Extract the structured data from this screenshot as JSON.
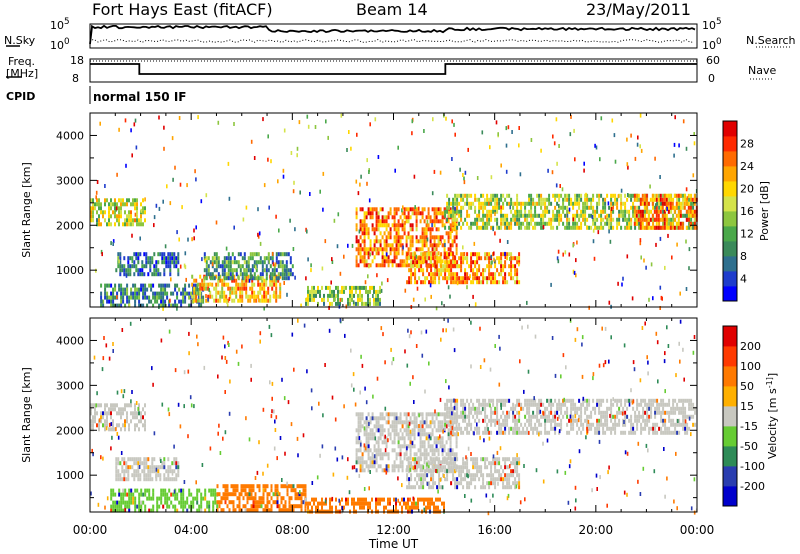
{
  "header": {
    "radar": "Fort Hays East (fitACF)",
    "beam": "Beam 14",
    "date": "23/May/2011"
  },
  "top_labels": {
    "nsky": "N.Sky",
    "nsearch": "N.Search",
    "freq_line1": "Freq.",
    "freq_line2": "[MHz]",
    "nave": "Nave",
    "cpid": "CPID",
    "cpid_value": "normal 150 IF",
    "noise_ticks": [
      "10^5",
      "10^0"
    ],
    "freq_ticks": [
      "18",
      "8"
    ],
    "nave_ticks": [
      "60",
      "0"
    ]
  },
  "x_axis": {
    "label": "Time UT",
    "ticks": [
      "00:00",
      "04:00",
      "08:00",
      "12:00",
      "16:00",
      "20:00",
      "00:00"
    ]
  },
  "chart_data": [
    {
      "type": "heatmap",
      "quantity": "Power",
      "ylabel": "Slant Range [km]",
      "ylim": [
        180,
        4500
      ],
      "yticks": [
        1000,
        2000,
        3000,
        4000
      ],
      "xlim_hours": [
        0,
        24
      ],
      "colorbar_label": "Power [dB]",
      "colorbar_ticks": [
        "28",
        "24",
        "20",
        "16",
        "12",
        "8",
        "4"
      ],
      "colorbar_colors": [
        "#0000ff",
        "#1e3ccc",
        "#2e6f8e",
        "#3a8a5a",
        "#4aa84a",
        "#8dc63f",
        "#d4e34a",
        "#ffd700",
        "#ffa500",
        "#ff6a00",
        "#ff2a00",
        "#e00000"
      ],
      "bands": [
        {
          "t": [
            0.0,
            2.2
          ],
          "r": [
            2050,
            2600
          ],
          "level": 0.55
        },
        {
          "t": [
            0.4,
            4.5
          ],
          "r": [
            200,
            700
          ],
          "level": 0.25
        },
        {
          "t": [
            1.0,
            3.5
          ],
          "r": [
            900,
            1400
          ],
          "level": 0.2
        },
        {
          "t": [
            4.0,
            7.5
          ],
          "r": [
            300,
            900
          ],
          "level": 0.7
        },
        {
          "t": [
            4.5,
            8.0
          ],
          "r": [
            800,
            1400
          ],
          "level": 0.3
        },
        {
          "t": [
            8.5,
            11.5
          ],
          "r": [
            250,
            650
          ],
          "level": 0.45
        },
        {
          "t": [
            10.5,
            14.5
          ],
          "r": [
            1100,
            2400
          ],
          "level": 0.8
        },
        {
          "t": [
            12.5,
            17.0
          ],
          "r": [
            700,
            1400
          ],
          "level": 0.75
        },
        {
          "t": [
            14.0,
            23.9
          ],
          "r": [
            1900,
            2700
          ],
          "level": 0.5
        },
        {
          "t": [
            21.5,
            24.0
          ],
          "r": [
            1900,
            2700
          ],
          "level": 0.8
        }
      ]
    },
    {
      "type": "heatmap",
      "quantity": "Velocity",
      "ylabel": "Slant Range [km]",
      "ylim": [
        180,
        4500
      ],
      "yticks": [
        1000,
        2000,
        3000,
        4000
      ],
      "xlim_hours": [
        0,
        24
      ],
      "colorbar_label": "Velocity [m s^-1]",
      "colorbar_ticks": [
        "200",
        "100",
        "50",
        "15",
        "-15",
        "-50",
        "-100",
        "-200"
      ],
      "colorbar_colors": [
        "#0000cc",
        "#2a3db0",
        "#2e8b57",
        "#66cc33",
        "#c8c8c0",
        "#ffb000",
        "#ff7a00",
        "#ff3a00",
        "#e00000"
      ],
      "bands": [
        {
          "t": [
            0.0,
            2.2
          ],
          "r": [
            2050,
            2600
          ],
          "level": "ground"
        },
        {
          "t": [
            1.0,
            3.5
          ],
          "r": [
            900,
            1400
          ],
          "level": "ground"
        },
        {
          "t": [
            0.8,
            5.0
          ],
          "r": [
            250,
            700
          ],
          "level": "green"
        },
        {
          "t": [
            5.0,
            8.5
          ],
          "r": [
            250,
            800
          ],
          "level": "orange"
        },
        {
          "t": [
            8.5,
            14.0
          ],
          "r": [
            200,
            500
          ],
          "level": "orange"
        },
        {
          "t": [
            10.5,
            14.5
          ],
          "r": [
            1100,
            2400
          ],
          "level": "ground"
        },
        {
          "t": [
            12.5,
            17.0
          ],
          "r": [
            700,
            1400
          ],
          "level": "ground"
        },
        {
          "t": [
            14.0,
            23.9
          ],
          "r": [
            1900,
            2700
          ],
          "level": "ground"
        }
      ]
    }
  ],
  "colors": {
    "axis": "#000000",
    "background": "#ffffff"
  }
}
